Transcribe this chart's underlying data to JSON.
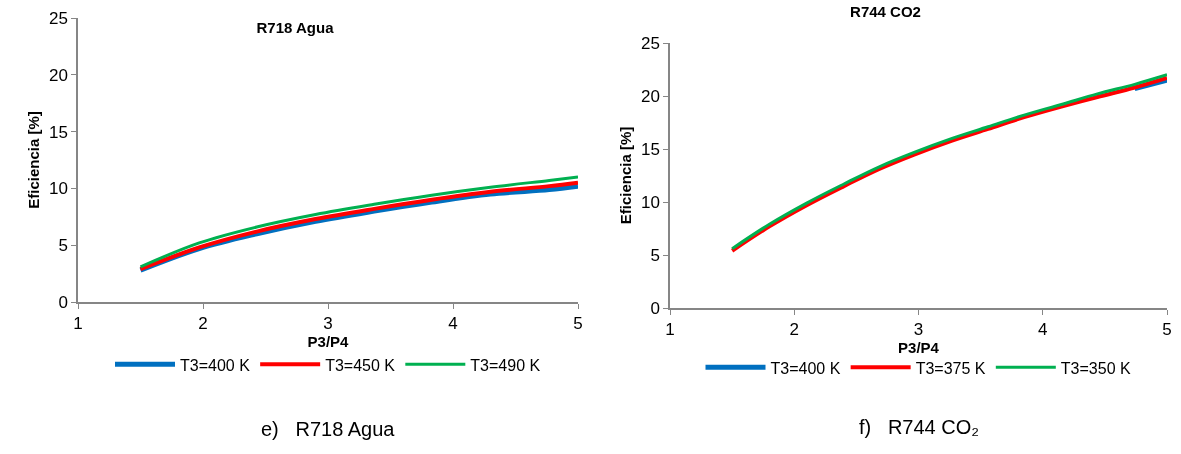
{
  "chart_data": [
    {
      "type": "line",
      "title": "R718 Agua",
      "xlabel": "P3/P4",
      "ylabel": "Eficiencia [%]",
      "x": [
        1.5,
        1.97,
        2.43,
        2.9,
        3.37,
        3.83,
        4.3,
        4.77,
        5
      ],
      "series": [
        {
          "name": "T3=400 K",
          "color": "#0070c0",
          "values": [
            2.8,
            4.7,
            6.0,
            7.1,
            8.0,
            8.8,
            9.5,
            9.9,
            10.2
          ]
        },
        {
          "name": "T3=450 K",
          "color": "#ff0000",
          "values": [
            2.9,
            4.8,
            6.2,
            7.3,
            8.2,
            9.0,
            9.7,
            10.2,
            10.5
          ]
        },
        {
          "name": "T3=490 K",
          "color": "#00b050",
          "values": [
            3.1,
            5.2,
            6.6,
            7.7,
            8.6,
            9.4,
            10.1,
            10.7,
            11.0
          ]
        }
      ],
      "xlim": [
        1,
        5
      ],
      "xticks": [
        1,
        2,
        3,
        4,
        5
      ],
      "ylim": [
        0,
        25
      ],
      "yticks": [
        0,
        5,
        10,
        15,
        20,
        25
      ],
      "grid": false,
      "legend": "bottom",
      "annotations": [
        "e)   R718 Agua"
      ]
    },
    {
      "type": "line",
      "title": "R744 CO2",
      "xlabel": "P3/P4",
      "ylabel": "Eficiencia [%]",
      "x": [
        1.5,
        1.8,
        2.1,
        2.4,
        2.68,
        2.97,
        3.27,
        3.56,
        3.85,
        4.15,
        4.44,
        4.74,
        5
      ],
      "series": [
        {
          "name": "T3=400 K",
          "color": "#0070c0",
          "values": [
            null,
            null,
            null,
            null,
            null,
            null,
            null,
            null,
            null,
            null,
            null,
            20.7,
            21.5
          ]
        },
        {
          "name": "T3=375 K",
          "color": "#ff0000",
          "values": [
            5.4,
            7.7,
            9.7,
            11.5,
            13.1,
            14.5,
            15.8,
            16.9,
            18.0,
            19.0,
            19.9,
            20.8,
            21.7
          ]
        },
        {
          "name": "T3=350 K",
          "color": "#00b050",
          "values": [
            5.6,
            7.9,
            9.9,
            11.7,
            13.3,
            14.7,
            16.0,
            17.1,
            18.2,
            19.2,
            20.2,
            21.1,
            22.0
          ]
        }
      ],
      "xlim": [
        1,
        5
      ],
      "xticks": [
        1,
        2,
        3,
        4,
        5
      ],
      "ylim": [
        0,
        25
      ],
      "yticks": [
        0,
        5,
        10,
        15,
        20,
        25
      ],
      "grid": false,
      "legend": "bottom",
      "annotations": [
        "f)   R744 CO₂"
      ]
    }
  ]
}
